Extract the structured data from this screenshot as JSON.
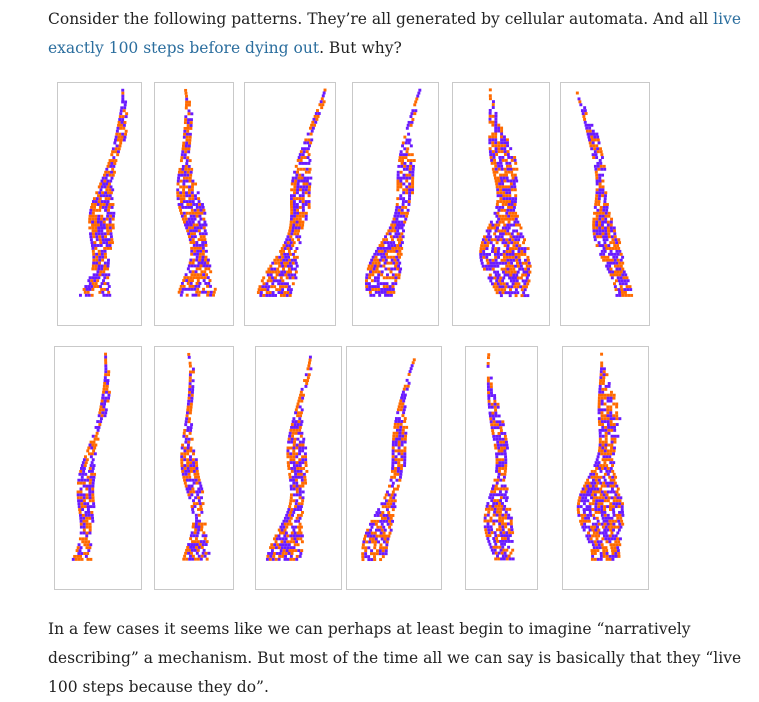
{
  "intro": {
    "before_link": "Consider the following patterns. They’re all generated by cellular automata. And all ",
    "link_text": "live exactly 100 steps before dying out",
    "after_link": ". But why?"
  },
  "figure": {
    "description_colors": {
      "c1": "#ff6a00",
      "c2": "#6a1bff",
      "frame": "#c9c9c9"
    },
    "pattern_count": 12
  },
  "outro": {
    "text": "In a few cases it seems like we can perhaps at least begin to imagine “narratively describing” a mechanism. But most of the time all we can say is basically that they “live 100 steps because they do”."
  }
}
